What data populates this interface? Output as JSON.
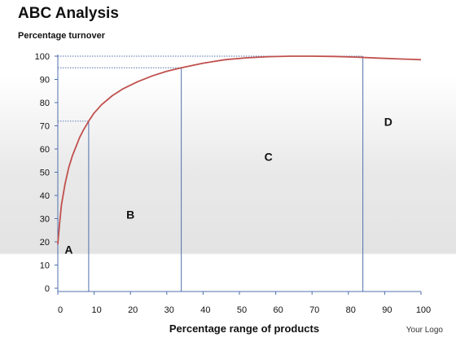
{
  "page": {
    "title": "ABC Analysis",
    "logo_text": "Your Logo"
  },
  "chart_data": {
    "type": "line",
    "title": "ABC Analysis",
    "ylabel": "Percentage turnover",
    "xlabel": "Percentage range of products",
    "xlim": [
      0,
      100
    ],
    "ylim": [
      0,
      100
    ],
    "xticks": [
      0,
      10,
      20,
      30,
      40,
      50,
      60,
      70,
      80,
      90,
      100
    ],
    "yticks": [
      0,
      10,
      20,
      30,
      40,
      50,
      60,
      70,
      80,
      90,
      100
    ],
    "grid": false,
    "series": [
      {
        "color": "#c0504d",
        "x": [
          0,
          0.5,
          1,
          2,
          3,
          4,
          5,
          6,
          7,
          8.5,
          10,
          12,
          15,
          18,
          22,
          26,
          30,
          34,
          40,
          46,
          52,
          58,
          64,
          70,
          76,
          82,
          88,
          94,
          100
        ],
        "y": [
          19,
          28,
          36,
          45,
          52,
          57,
          61,
          65,
          68,
          72,
          75.5,
          79,
          83,
          86,
          89,
          91.5,
          93.5,
          95,
          97,
          98.5,
          99.3,
          99.8,
          100,
          100,
          99.9,
          99.6,
          99.2,
          98.8,
          98.5
        ]
      }
    ],
    "reference_lines": [
      {
        "x": 8.5,
        "y": 72
      },
      {
        "x": 34,
        "y": 95
      },
      {
        "x": 84,
        "y": 100
      }
    ],
    "region_labels": [
      {
        "text": "A",
        "x": 3,
        "y": 15
      },
      {
        "text": "B",
        "x": 20,
        "y": 30
      },
      {
        "text": "C",
        "x": 58,
        "y": 55
      },
      {
        "text": "D",
        "x": 91,
        "y": 70
      }
    ],
    "colors": {
      "curve": "#c0504d",
      "reference": "#4f6fad",
      "axis": "#4f6fad",
      "text": "#111111"
    }
  }
}
